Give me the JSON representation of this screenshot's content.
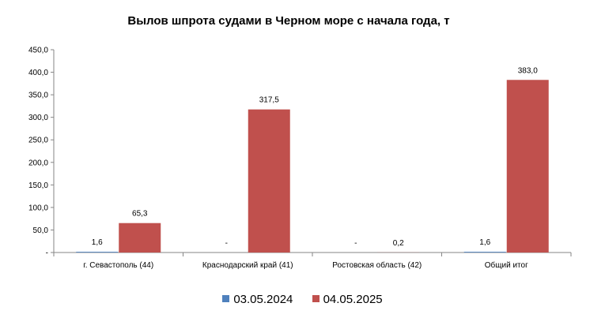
{
  "chart_data": {
    "type": "bar",
    "title": "Вылов шпрота судами в Черном море с начала  года, т",
    "xlabel": "",
    "ylabel": "",
    "ylim": [
      0,
      450
    ],
    "yticks": [
      "-",
      "50,0",
      "100,0",
      "150,0",
      "200,0",
      "250,0",
      "300,0",
      "350,0",
      "400,0",
      "450,0"
    ],
    "categories": [
      "г. Севастополь (44)",
      "Краснодарский край (41)",
      "Ростовская область (42)",
      "Общий итог"
    ],
    "series": [
      {
        "name": "03.05.2024",
        "color": "#4f81bd",
        "values": [
          1.6,
          0,
          0,
          1.6
        ],
        "labels": [
          "1,6",
          "-",
          "-",
          "1,6"
        ]
      },
      {
        "name": "04.05.2025",
        "color": "#c0504d",
        "values": [
          65.3,
          317.5,
          0.2,
          383.0
        ],
        "labels": [
          "65,3",
          "317,5",
          "0,2",
          "383,0"
        ]
      }
    ],
    "legend_position": "bottom",
    "grid": false
  }
}
